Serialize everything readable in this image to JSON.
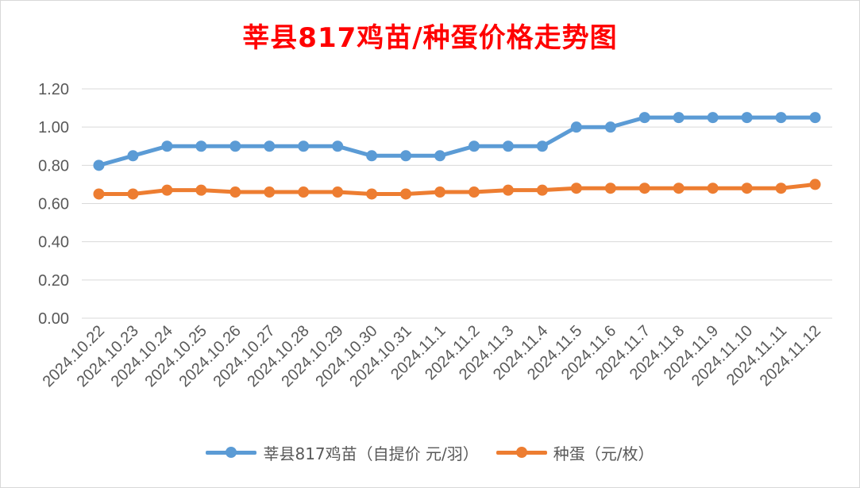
{
  "chart_data": {
    "type": "line",
    "title": "莘县817鸡苗/种蛋价格走势图",
    "categories": [
      "2024.10.22",
      "2024.10.23",
      "2024.10.24",
      "2024.10.25",
      "2024.10.26",
      "2024.10.27",
      "2024.10.28",
      "2024.10.29",
      "2024.10.30",
      "2024.10.31",
      "2024.11.1",
      "2024.11.2",
      "2024.11.3",
      "2024.11.4",
      "2024.11.5",
      "2024.11.6",
      "2024.11.7",
      "2024.11.8",
      "2024.11.9",
      "2024.11.10",
      "2024.11.11",
      "2024.11.12"
    ],
    "series": [
      {
        "name": "莘县817鸡苗（自提价 元/羽）",
        "color": "#5b9bd5",
        "values": [
          0.8,
          0.85,
          0.9,
          0.9,
          0.9,
          0.9,
          0.9,
          0.9,
          0.85,
          0.85,
          0.85,
          0.9,
          0.9,
          0.9,
          1.0,
          1.0,
          1.05,
          1.05,
          1.05,
          1.05,
          1.05,
          1.05
        ]
      },
      {
        "name": "种蛋（元/枚）",
        "color": "#ed7d31",
        "values": [
          0.65,
          0.65,
          0.67,
          0.67,
          0.66,
          0.66,
          0.66,
          0.66,
          0.65,
          0.65,
          0.66,
          0.66,
          0.67,
          0.67,
          0.68,
          0.68,
          0.68,
          0.68,
          0.68,
          0.68,
          0.68,
          0.7
        ]
      }
    ],
    "ylim": [
      0,
      1.2
    ],
    "yticks": [
      "0.00",
      "0.20",
      "0.40",
      "0.60",
      "0.80",
      "1.00",
      "1.20"
    ],
    "xlabel": "",
    "ylabel": "",
    "grid": true,
    "legend_position": "bottom"
  }
}
